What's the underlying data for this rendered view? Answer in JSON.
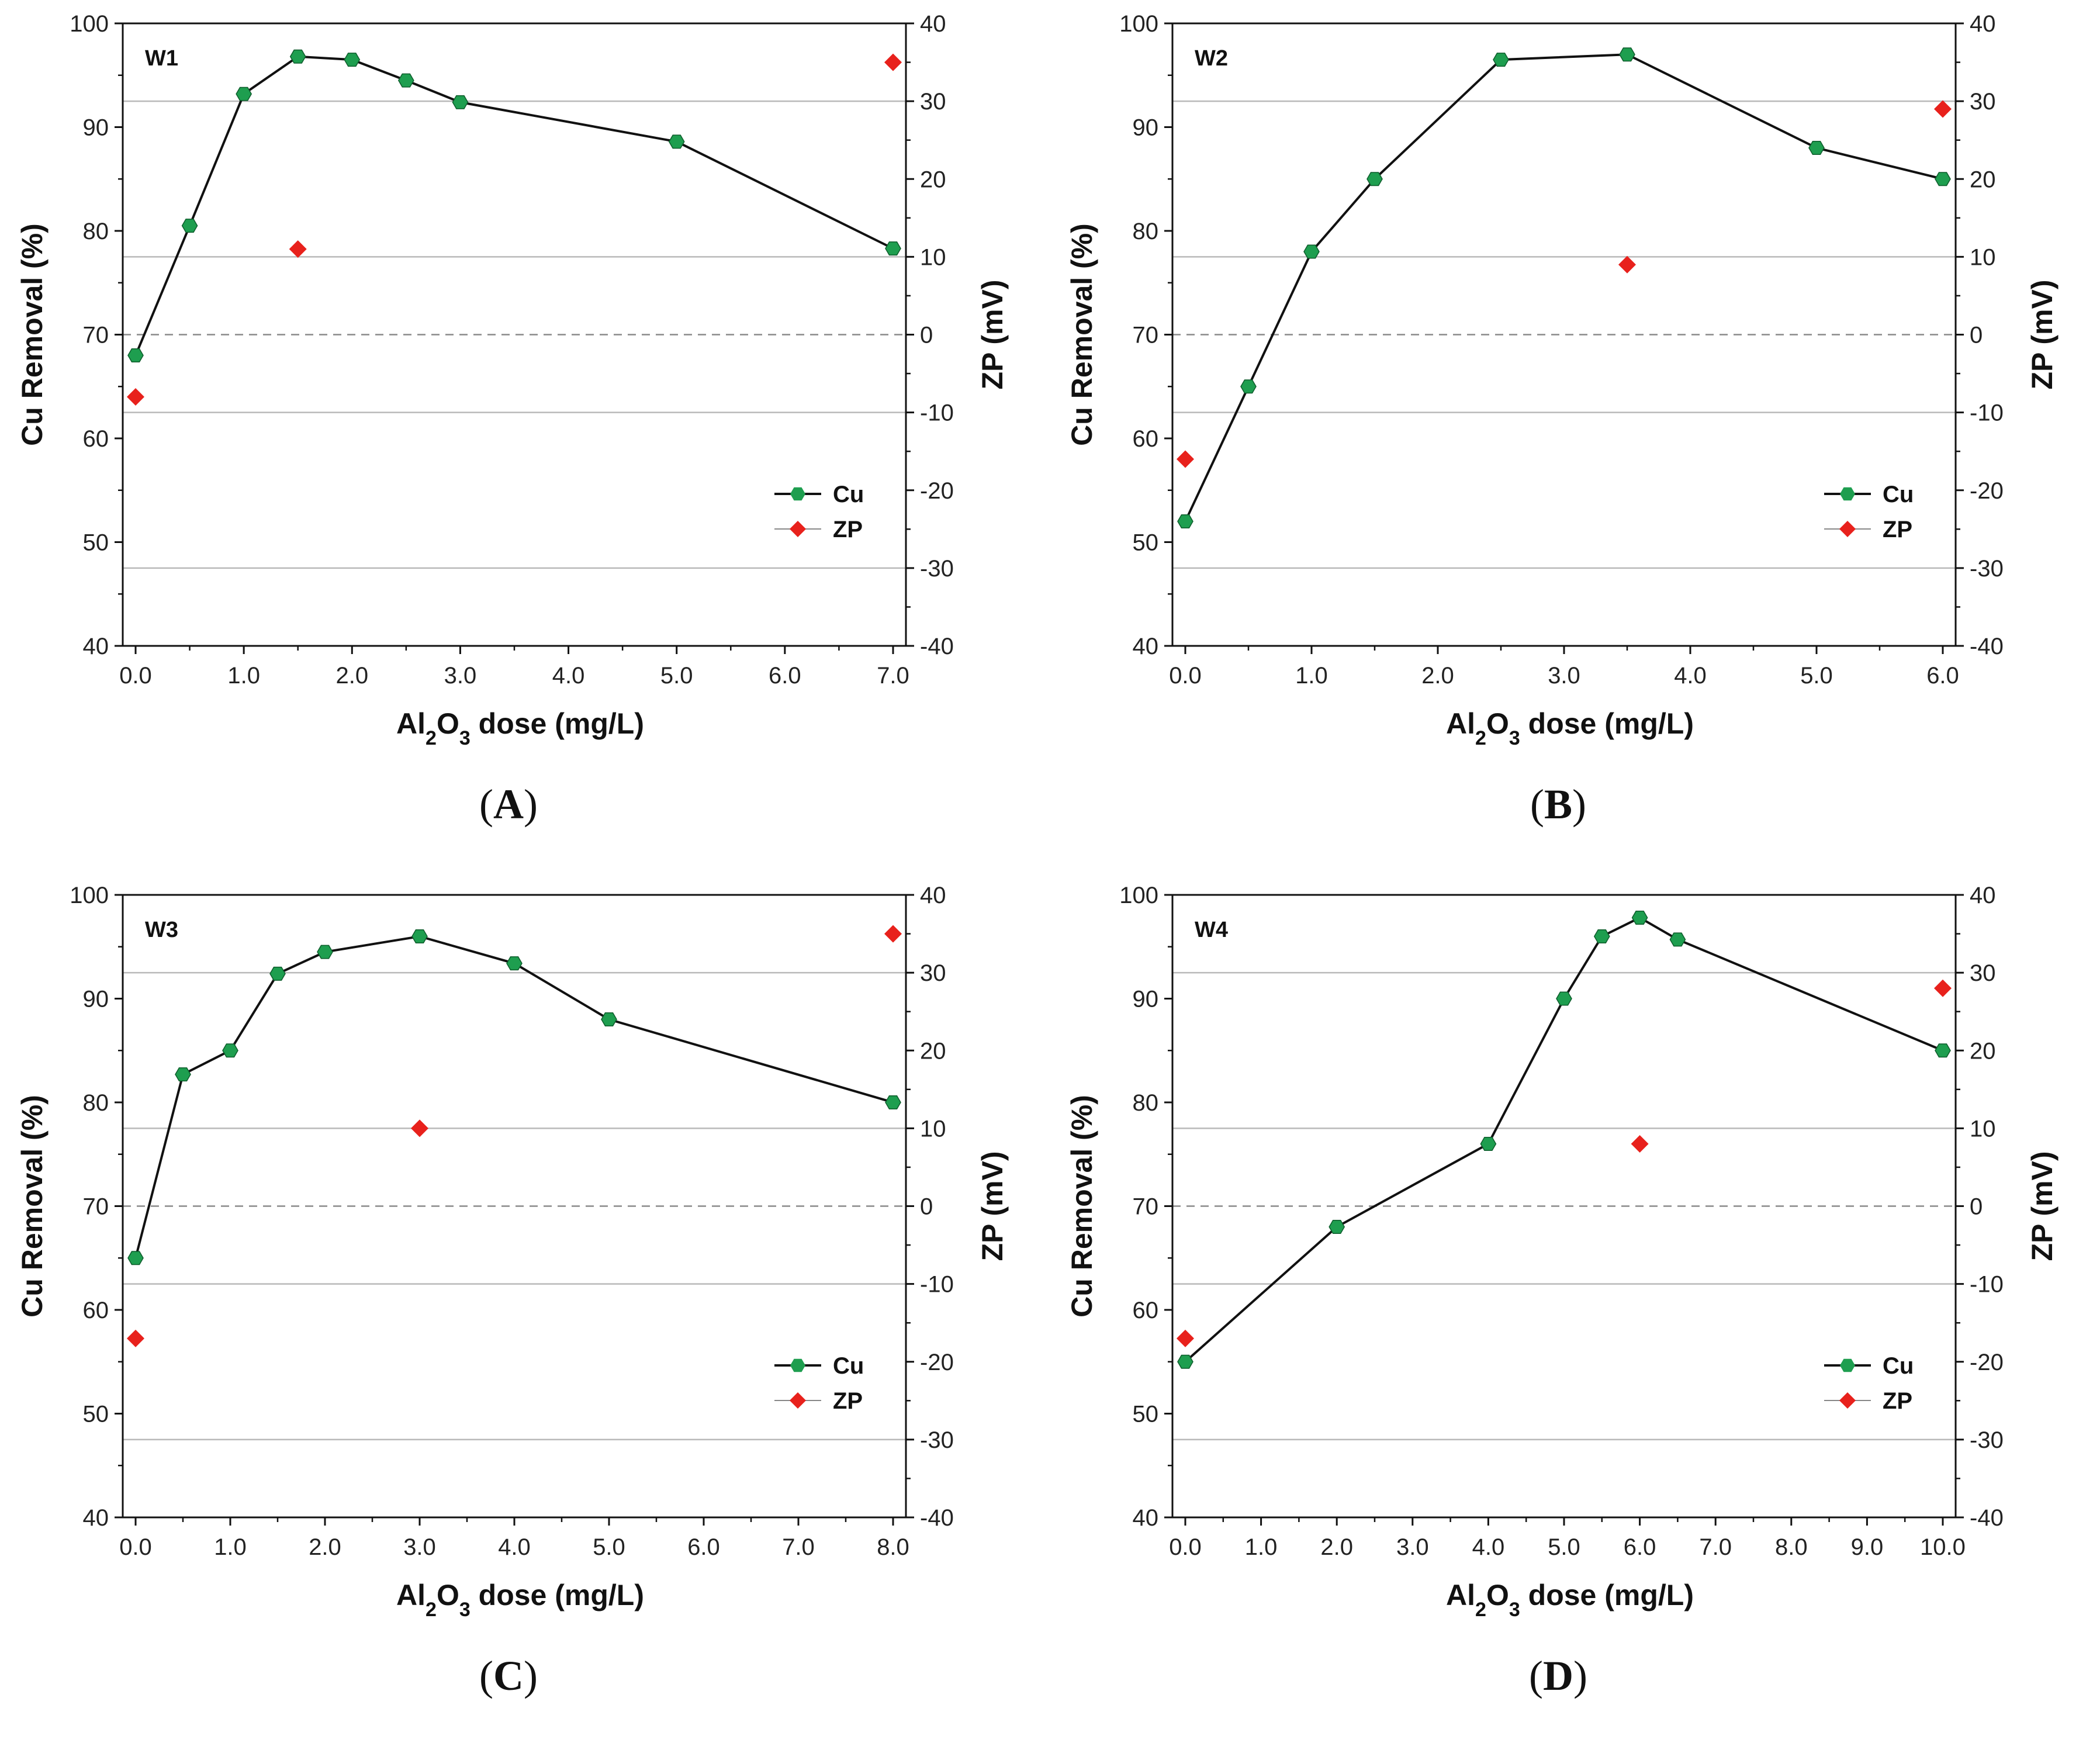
{
  "colors": {
    "cu_marker": "#1e9e4f",
    "zp_marker": "#e8211c",
    "line": "#111111",
    "grid": "#b9b9b9",
    "zero_line": "#8a8a8a"
  },
  "chart_data": [
    {
      "type": "line",
      "panel_label": "(A)",
      "caption_letter": "A",
      "tag": "W1",
      "xlabel": {
        "prefix": "Al",
        "sub1": "2",
        "mid": "O",
        "sub2": "3",
        "suffix": " dose (mg/L)"
      },
      "ylabel": "Cu Removal (%)",
      "y2label": "ZP (mV)",
      "ylim": [
        40,
        100
      ],
      "y2lim": [
        -40,
        40
      ],
      "xticks": [
        0,
        1,
        2,
        3,
        4,
        5,
        6,
        7
      ],
      "xticklabels": [
        "0.0",
        "1.0",
        "2.0",
        "3.0",
        "4.0",
        "5.0",
        "6.0",
        "7.0"
      ],
      "yticks": [
        40,
        50,
        60,
        70,
        80,
        90,
        100
      ],
      "y2ticks": [
        40,
        30,
        20,
        10,
        0,
        -10,
        -20,
        -30,
        -40
      ],
      "legend": [
        "Cu",
        "ZP"
      ],
      "series": [
        {
          "name": "Cu",
          "x": [
            0,
            0.5,
            1.0,
            1.5,
            2.0,
            2.5,
            3.0,
            5.0,
            7.0
          ],
          "y": [
            68,
            80.5,
            93.2,
            96.8,
            96.5,
            94.5,
            92.4,
            88.6,
            78.3
          ]
        },
        {
          "name": "ZP",
          "x": [
            0,
            1.5,
            7.0
          ],
          "y": [
            -8,
            11,
            35
          ]
        }
      ]
    },
    {
      "type": "line",
      "panel_label": "(B)",
      "caption_letter": "B",
      "tag": "W2",
      "xlabel": {
        "prefix": "Al",
        "sub1": "2",
        "mid": "O",
        "sub2": "3",
        "suffix": " dose (mg/L)"
      },
      "ylabel": "Cu Removal (%)",
      "y2label": "ZP (mV)",
      "ylim": [
        40,
        100
      ],
      "y2lim": [
        -40,
        40
      ],
      "xticks": [
        0,
        1,
        2,
        3,
        4,
        5,
        6
      ],
      "xticklabels": [
        "0.0",
        "1.0",
        "2.0",
        "3.0",
        "4.0",
        "5.0",
        "6.0"
      ],
      "yticks": [
        40,
        50,
        60,
        70,
        80,
        90,
        100
      ],
      "y2ticks": [
        40,
        30,
        20,
        10,
        0,
        -10,
        -20,
        -30,
        -40
      ],
      "legend": [
        "Cu",
        "ZP"
      ],
      "series": [
        {
          "name": "Cu",
          "x": [
            0,
            0.5,
            1.0,
            1.5,
            2.5,
            3.5,
            5.0,
            6.0
          ],
          "y": [
            52,
            65,
            78,
            85,
            96.5,
            97,
            88,
            85
          ]
        },
        {
          "name": "ZP",
          "x": [
            0,
            3.5,
            6.0
          ],
          "y": [
            -16,
            9,
            29
          ]
        }
      ]
    },
    {
      "type": "line",
      "panel_label": "(C)",
      "caption_letter": "C",
      "tag": "W3",
      "xlabel": {
        "prefix": "Al",
        "sub1": "2",
        "mid": "O",
        "sub2": "3",
        "suffix": " dose (mg/L)"
      },
      "ylabel": "Cu Removal (%)",
      "y2label": "ZP (mV)",
      "ylim": [
        40,
        100
      ],
      "y2lim": [
        -40,
        40
      ],
      "xticks": [
        0,
        1,
        2,
        3,
        4,
        5,
        6,
        7,
        8
      ],
      "xticklabels": [
        "0.0",
        "1.0",
        "2.0",
        "3.0",
        "4.0",
        "5.0",
        "6.0",
        "7.0",
        "8.0"
      ],
      "yticks": [
        40,
        50,
        60,
        70,
        80,
        90,
        100
      ],
      "y2ticks": [
        40,
        30,
        20,
        10,
        0,
        -10,
        -20,
        -30,
        -40
      ],
      "legend": [
        "Cu",
        "ZP"
      ],
      "series": [
        {
          "name": "Cu",
          "x": [
            0,
            0.5,
            1.0,
            1.5,
            2.0,
            3.0,
            4.0,
            5.0,
            8.0
          ],
          "y": [
            65,
            82.7,
            85,
            92.4,
            94.5,
            96,
            93.4,
            88,
            80
          ]
        },
        {
          "name": "ZP",
          "x": [
            0,
            3.0,
            8.0
          ],
          "y": [
            -17,
            10,
            35
          ]
        }
      ]
    },
    {
      "type": "line",
      "panel_label": "(D)",
      "caption_letter": "D",
      "tag": "W4",
      "xlabel": {
        "prefix": "Al",
        "sub1": "2",
        "mid": "O",
        "sub2": "3",
        "suffix": " dose (mg/L)"
      },
      "ylabel": "Cu Removal (%)",
      "y2label": "ZP (mV)",
      "ylim": [
        40,
        100
      ],
      "y2lim": [
        -40,
        40
      ],
      "xticks": [
        0,
        1,
        2,
        3,
        4,
        5,
        6,
        7,
        8,
        9,
        10
      ],
      "xticklabels": [
        "0.0",
        "1.0",
        "2.0",
        "3.0",
        "4.0",
        "5.0",
        "6.0",
        "7.0",
        "8.0",
        "9.0",
        "10.0"
      ],
      "yticks": [
        40,
        50,
        60,
        70,
        80,
        90,
        100
      ],
      "y2ticks": [
        40,
        30,
        20,
        10,
        0,
        -10,
        -20,
        -30,
        -40
      ],
      "legend": [
        "Cu",
        "ZP"
      ],
      "series": [
        {
          "name": "Cu",
          "x": [
            0,
            2.0,
            4.0,
            5.0,
            5.5,
            6.0,
            6.5,
            10.0
          ],
          "y": [
            55,
            68,
            76,
            90,
            96,
            97.8,
            95.7,
            85
          ]
        },
        {
          "name": "ZP",
          "x": [
            0,
            6.0,
            10.0
          ],
          "y": [
            -17,
            8,
            28
          ]
        }
      ]
    }
  ]
}
